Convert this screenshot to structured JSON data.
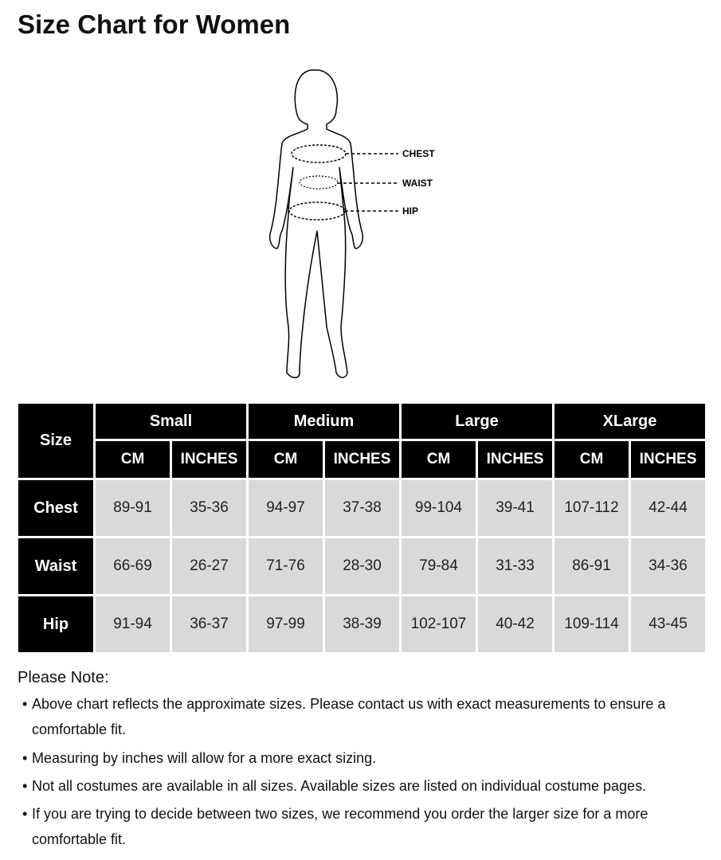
{
  "title": "Size Chart for Women",
  "figure": {
    "labels": [
      "CHEST",
      "WAIST",
      "HIP"
    ]
  },
  "table": {
    "corner": "Size",
    "sizes": [
      "Small",
      "Medium",
      "Large",
      "XLarge"
    ],
    "units": [
      "CM",
      "INCHES"
    ],
    "rows": [
      {
        "label": "Chest",
        "values": [
          "89-91",
          "35-36",
          "94-97",
          "37-38",
          "99-104",
          "39-41",
          "107-112",
          "42-44"
        ]
      },
      {
        "label": "Waist",
        "values": [
          "66-69",
          "26-27",
          "71-76",
          "28-30",
          "79-84",
          "31-33",
          "86-91",
          "34-36"
        ]
      },
      {
        "label": "Hip",
        "values": [
          "91-94",
          "36-37",
          "97-99",
          "38-39",
          "102-107",
          "40-42",
          "109-114",
          "43-45"
        ]
      }
    ]
  },
  "notes": {
    "title": "Please Note:",
    "items": [
      "Above chart reflects the approximate sizes. Please contact us with exact measurements to ensure a comfortable fit.",
      "Measuring by inches will allow for a more exact sizing.",
      "Not all costumes are available in all sizes. Available sizes are listed on individual costume pages.",
      "If you are trying to decide between two sizes, we recommend you order the larger size for a more comfortable fit."
    ]
  }
}
